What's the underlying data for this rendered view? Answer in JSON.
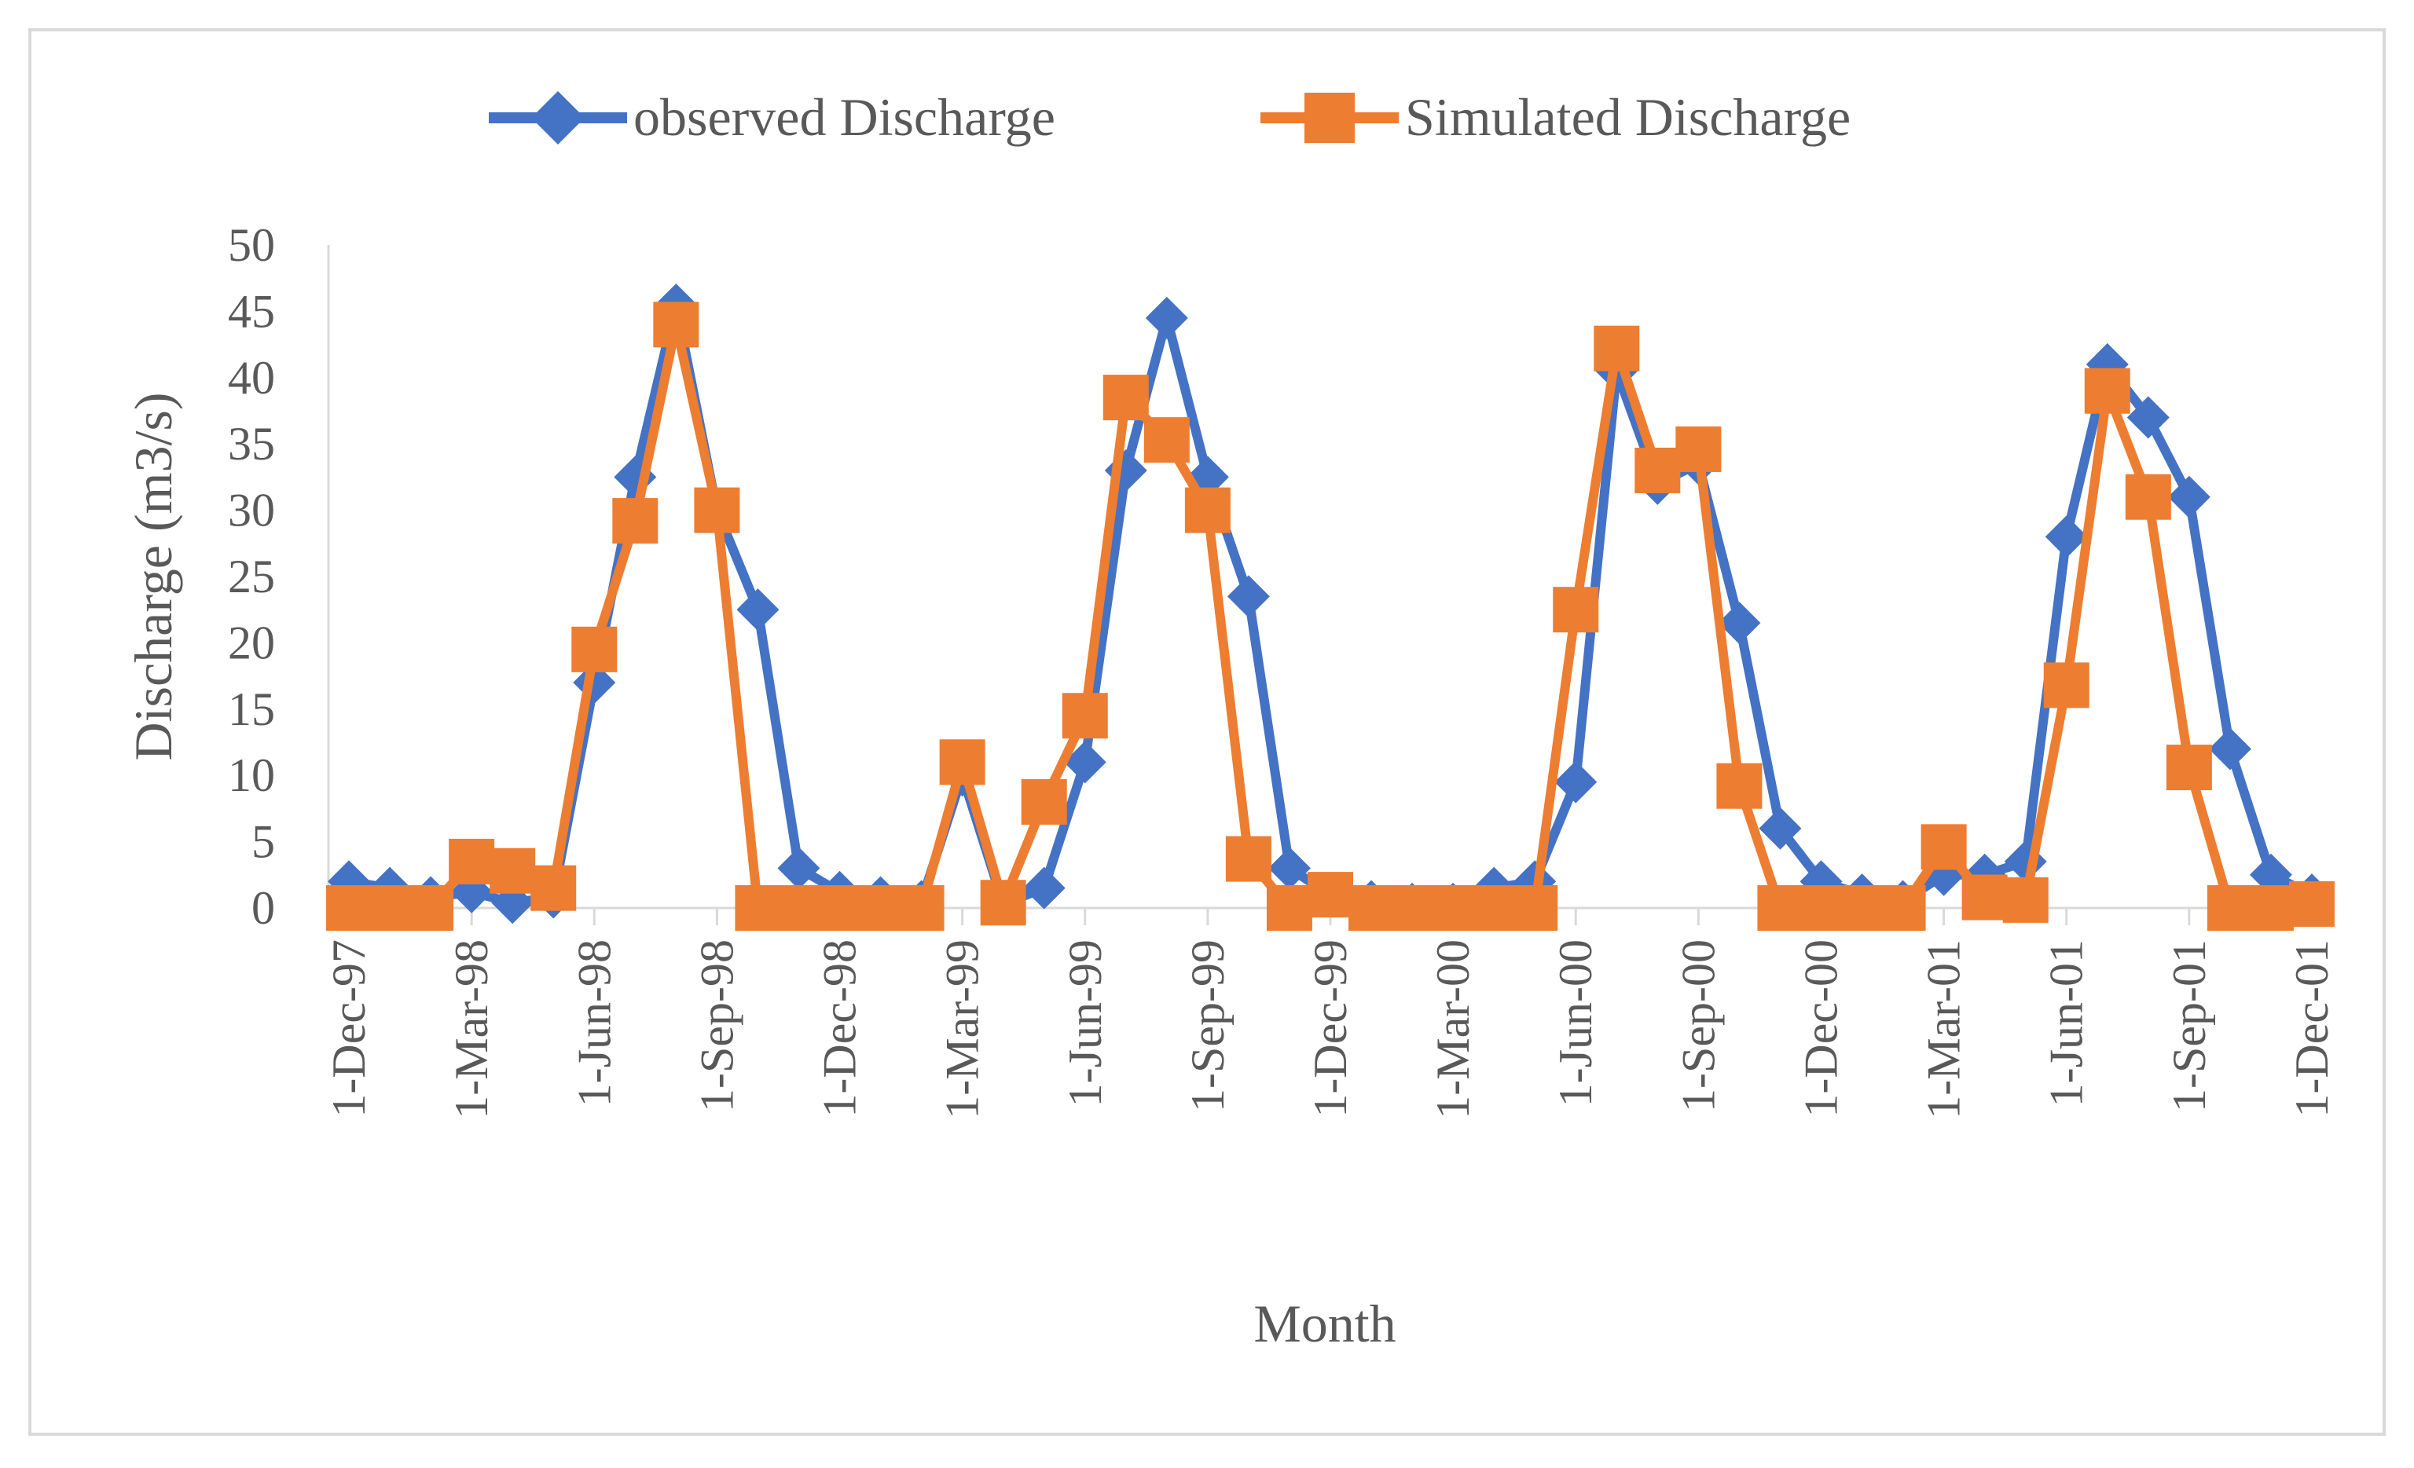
{
  "chart_data": {
    "type": "line",
    "title": "",
    "xlabel": "Month",
    "ylabel": "Discharge (m3/s)",
    "ylim": [
      0,
      50
    ],
    "yticks": [
      0,
      5,
      10,
      15,
      20,
      25,
      30,
      35,
      40,
      45,
      50
    ],
    "grid": false,
    "legend_position": "top",
    "x": [
      "Dec-97",
      "Jan-98",
      "Feb-98",
      "Mar-98",
      "Apr-98",
      "May-98",
      "Jun-98",
      "Jul-98",
      "Aug-98",
      "Sep-98",
      "Oct-98",
      "Nov-98",
      "Dec-98",
      "Jan-99",
      "Feb-99",
      "Mar-99",
      "Apr-99",
      "May-99",
      "Jun-99",
      "Jul-99",
      "Aug-99",
      "Sep-99",
      "Oct-99",
      "Nov-99",
      "Dec-99",
      "Jan-00",
      "Feb-00",
      "Mar-00",
      "Apr-00",
      "May-00",
      "Jun-00",
      "Jul-00",
      "Aug-00",
      "Sep-00",
      "Oct-00",
      "Nov-00",
      "Dec-00",
      "Jan-01",
      "Feb-01",
      "Mar-01",
      "Apr-01",
      "May-01",
      "Jun-01",
      "Jul-01",
      "Aug-01",
      "Sep-01",
      "Oct-01",
      "Nov-01",
      "Dec-01"
    ],
    "xtick_labels": [
      "1-Dec-97",
      "1-Mar-98",
      "1-Jun-98",
      "1-Sep-98",
      "1-Dec-98",
      "1-Mar-99",
      "1-Jun-99",
      "1-Sep-99",
      "1-Dec-99",
      "1-Mar-00",
      "1-Jun-00",
      "1-Sep-00",
      "1-Dec-00",
      "1-Mar-01",
      "1-Jun-01",
      "1-Sep-01",
      "1-Dec-01"
    ],
    "series": [
      {
        "name": "observed Discharge",
        "color": "#4472C4",
        "marker": "diamond",
        "values": [
          2,
          1.5,
          0.8,
          1.2,
          0.4,
          0.8,
          17,
          32.5,
          45.5,
          30,
          22.5,
          3,
          1.2,
          0.8,
          0.5,
          10,
          0.3,
          1.5,
          11,
          33,
          44.5,
          32.5,
          23.5,
          3,
          1,
          0.5,
          0.3,
          0.3,
          1.5,
          2,
          9.5,
          40.5,
          32,
          33.5,
          21.5,
          6,
          2,
          1,
          0.5,
          2.5,
          2.5,
          3.5,
          28,
          41,
          37,
          31,
          12,
          2.5,
          1
        ]
      },
      {
        "name": "Simulated Discharge",
        "color": "#ED7D31",
        "marker": "square",
        "values": [
          0,
          0,
          0,
          3.5,
          2.8,
          1.5,
          19.5,
          29.2,
          44,
          30,
          0,
          0,
          0,
          0,
          0,
          11,
          0.4,
          8,
          14.5,
          38.5,
          35.3,
          30,
          3.7,
          0,
          1,
          0,
          0,
          0,
          0,
          0,
          22.5,
          42.2,
          33,
          34.6,
          9.2,
          0,
          0,
          0,
          0,
          4.6,
          0.8,
          0.6,
          16.8,
          39,
          31,
          10.6,
          0,
          0,
          0.3
        ]
      }
    ]
  }
}
